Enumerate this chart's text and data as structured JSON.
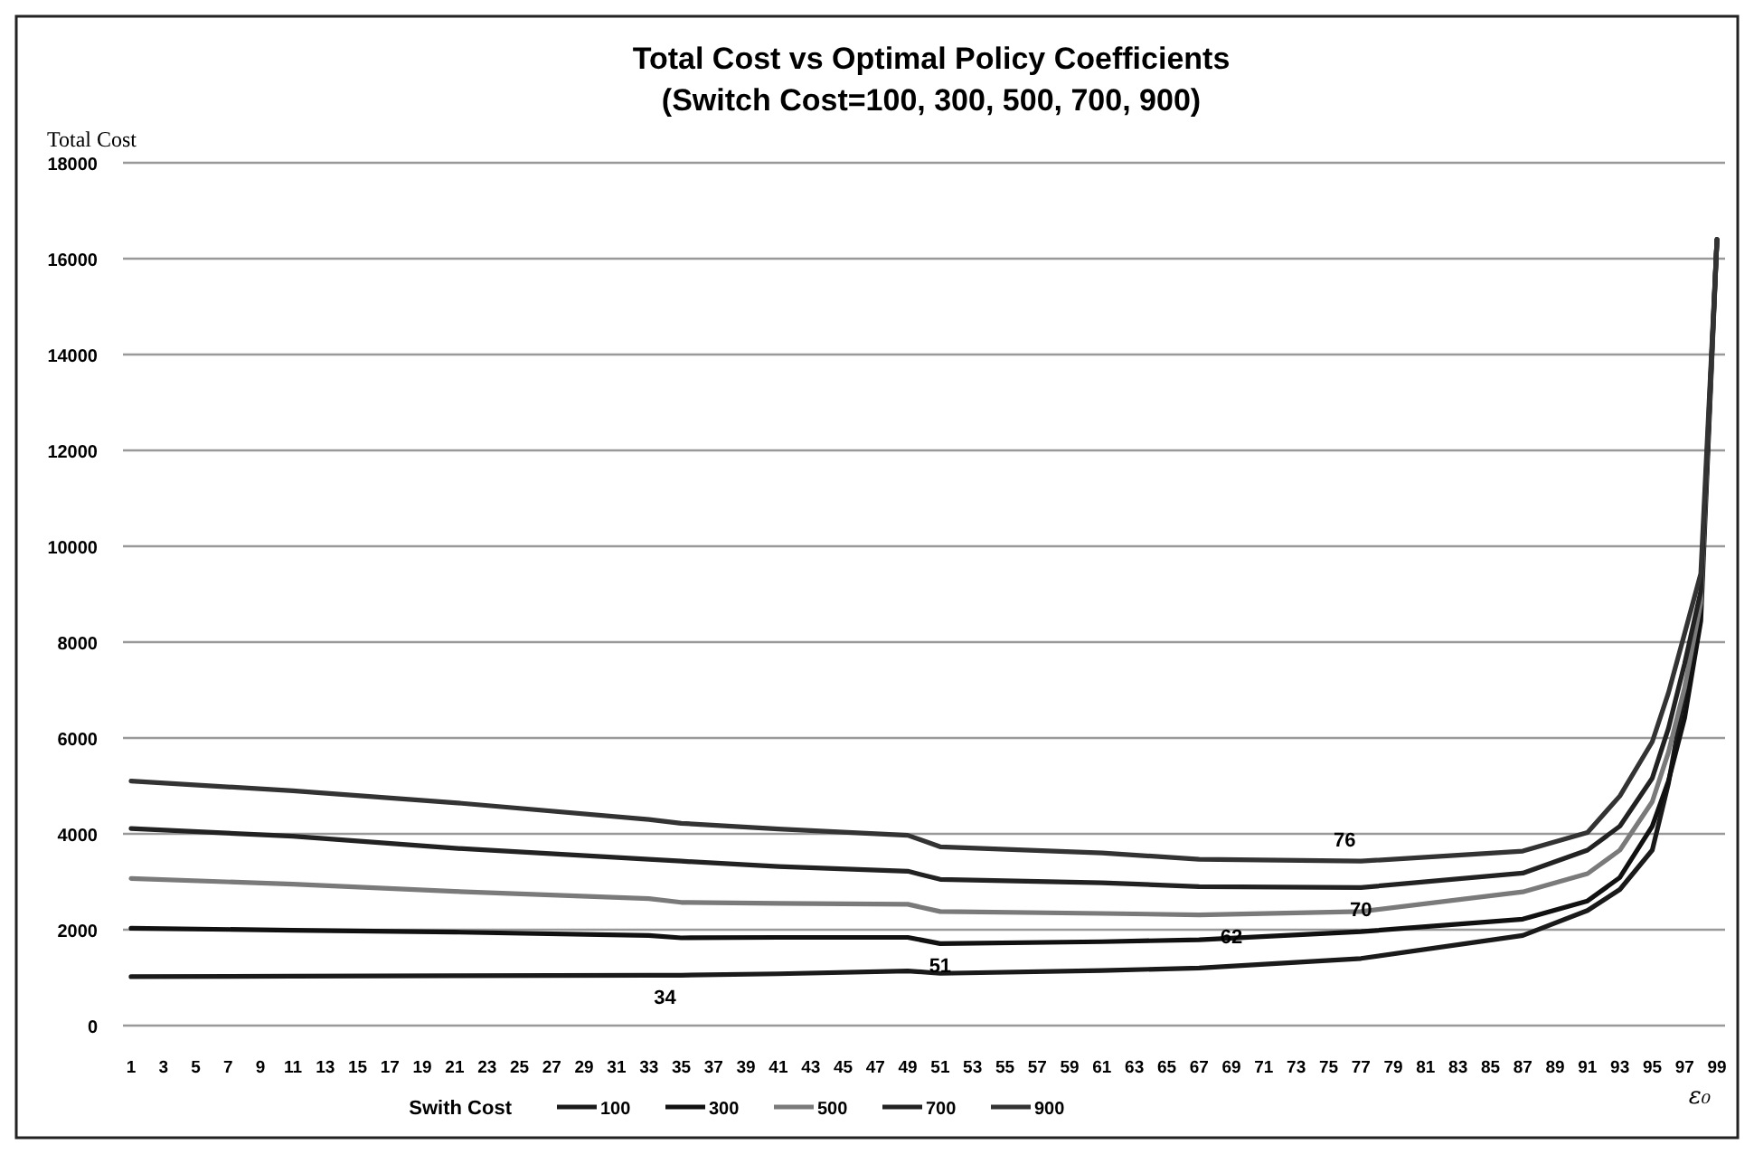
{
  "chart_data": {
    "type": "line",
    "title": "Total Cost vs Optimal Policy Coefficients",
    "subtitle": "(Switch Cost=100, 300, 500, 700, 900)",
    "ylabel": "Total Cost",
    "xlabel": "ε₀",
    "legend_title": "Swith Cost",
    "legend": "bottom",
    "grid": "y",
    "marker": "none",
    "line_style": "solid",
    "xlim": [
      0.5,
      99.5
    ],
    "xticks": [
      1,
      3,
      5,
      7,
      9,
      11,
      13,
      15,
      17,
      19,
      21,
      23,
      25,
      27,
      29,
      31,
      33,
      35,
      37,
      39,
      41,
      43,
      45,
      47,
      49,
      51,
      53,
      55,
      57,
      59,
      61,
      63,
      65,
      67,
      69,
      71,
      73,
      75,
      77,
      79,
      81,
      83,
      85,
      87,
      89,
      91,
      93,
      95,
      97,
      99
    ],
    "ylim": [
      0,
      18000
    ],
    "yticks": [
      0,
      2000,
      4000,
      6000,
      8000,
      10000,
      12000,
      14000,
      16000,
      18000
    ],
    "x": [
      1,
      11,
      21,
      33,
      35,
      41,
      49,
      51,
      61,
      67,
      77,
      87,
      91,
      93,
      95,
      96,
      97,
      98,
      99
    ],
    "series": [
      {
        "name": "100",
        "color": "#1a1a1a",
        "values": [
          1020,
          1030,
          1040,
          1050,
          1050,
          1080,
          1140,
          1090,
          1150,
          1200,
          1400,
          1880,
          2400,
          2840,
          3660,
          5050,
          6940,
          8820,
          16400
        ]
      },
      {
        "name": "300",
        "color": "#111111",
        "values": [
          2030,
          1990,
          1950,
          1880,
          1830,
          1840,
          1840,
          1710,
          1750,
          1790,
          1960,
          2220,
          2600,
          3090,
          4160,
          5100,
          6420,
          8440,
          16400
        ]
      },
      {
        "name": "500",
        "color": "#7a7a7a",
        "values": [
          3070,
          2950,
          2800,
          2650,
          2570,
          2550,
          2530,
          2380,
          2340,
          2310,
          2380,
          2790,
          3170,
          3660,
          4670,
          5700,
          7050,
          8820,
          16400
        ]
      },
      {
        "name": "700",
        "color": "#222222",
        "values": [
          4110,
          3950,
          3700,
          3470,
          3430,
          3320,
          3220,
          3050,
          2980,
          2900,
          2880,
          3180,
          3660,
          4160,
          5160,
          6200,
          7550,
          9060,
          16400
        ]
      },
      {
        "name": "900",
        "color": "#333333",
        "values": [
          5100,
          4900,
          4650,
          4300,
          4220,
          4100,
          3970,
          3730,
          3600,
          3470,
          3430,
          3640,
          4030,
          4790,
          5920,
          6940,
          8180,
          9430,
          16400
        ]
      }
    ],
    "annotations": [
      {
        "text": "34",
        "x": 34,
        "y": 1050
      },
      {
        "text": "51",
        "x": 51,
        "y": 1710
      },
      {
        "text": "62",
        "x": 69,
        "y": 2320
      },
      {
        "text": "70",
        "x": 77,
        "y": 2880
      },
      {
        "text": "76",
        "x": 76,
        "y": 3430
      }
    ]
  }
}
